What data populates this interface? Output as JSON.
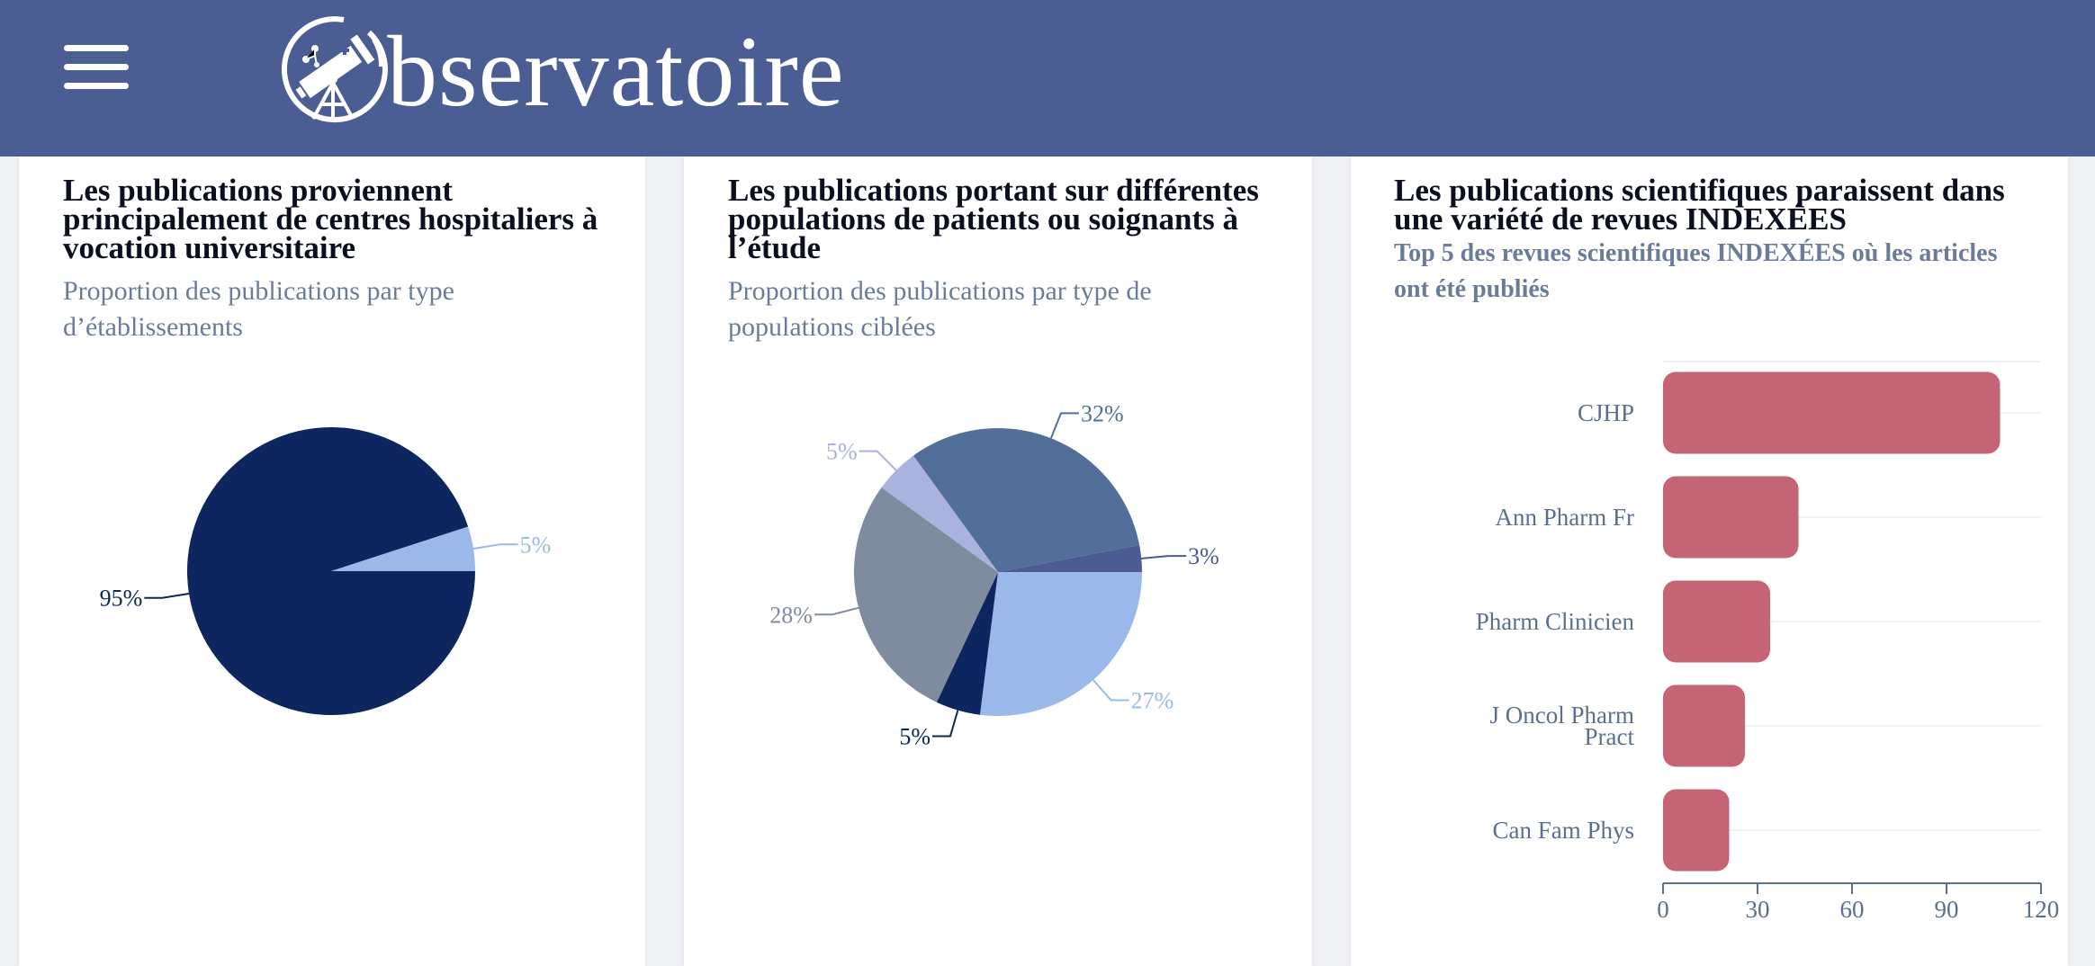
{
  "header": {
    "brand_text": "bservatoire",
    "brand_full": "Observatoire",
    "menu_icon": "hamburger-icon",
    "logo_icon": "telescope-icon",
    "color": "#4b5e93"
  },
  "cards": [
    {
      "title": "Les publications proviennent principalement de centres hospitaliers à vocation universitaire",
      "subtitle": "Proportion des publications par type d’établissements"
    },
    {
      "title": "Les publications portant sur différentes populations de patients ou soignants à l’étude",
      "subtitle": "Proportion des publications par type de populations ciblées"
    },
    {
      "title": "Les publications scientifiques paraissent dans une variété de revues INDEXÉES",
      "subtitle": "Top 5 des revues scientifiques INDEXÉES où les articles ont été publiés"
    }
  ],
  "chart_data": [
    {
      "type": "pie",
      "title": "Proportion des publications par type d’établissements",
      "slices": [
        {
          "label": "95%",
          "value": 95,
          "color": "#0d2660"
        },
        {
          "label": "5%",
          "value": 5,
          "color": "#9ab9ea"
        }
      ]
    },
    {
      "type": "pie",
      "title": "Proportion des publications par type de populations ciblées",
      "slices": [
        {
          "label": "27%",
          "value": 27,
          "color": "#9ab9ea"
        },
        {
          "label": "5%",
          "value": 5,
          "color": "#0d2660"
        },
        {
          "label": "28%",
          "value": 28,
          "color": "#7f8b9e"
        },
        {
          "label": "5%",
          "value": 5,
          "color": "#aab2dd"
        },
        {
          "label": "32%",
          "value": 32,
          "color": "#526f99"
        },
        {
          "label": "3%",
          "value": 3,
          "color": "#4c5b94"
        }
      ]
    },
    {
      "type": "bar",
      "orientation": "horizontal",
      "title": "Top 5 des revues scientifiques INDEXÉES où les articles ont été publiés",
      "categories": [
        [
          "CJHP"
        ],
        [
          "Ann Pharm Fr"
        ],
        [
          "Pharm Clinicien"
        ],
        [
          "J Oncol Pharm",
          "Pract"
        ],
        [
          "Can Fam Phys"
        ]
      ],
      "values": [
        107,
        43,
        34,
        26,
        21
      ],
      "xlim": [
        0,
        120
      ],
      "xticks": [
        "0",
        "30",
        "60",
        "90",
        "120"
      ],
      "bar_color": "#c46474",
      "grid": true
    }
  ]
}
